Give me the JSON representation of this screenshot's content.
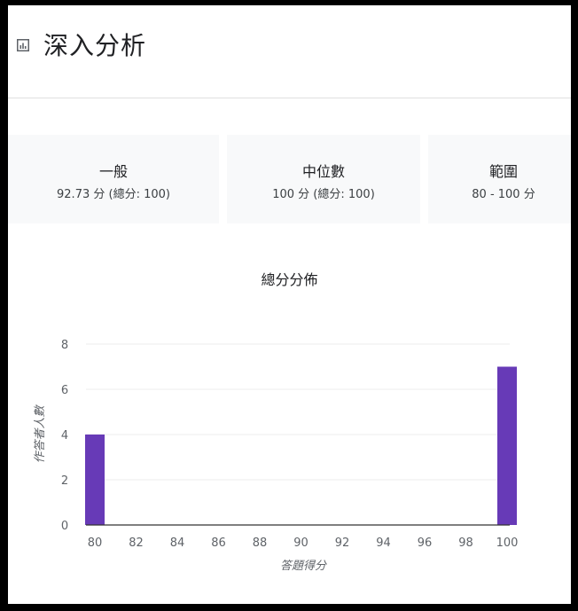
{
  "header": {
    "title": "深入分析",
    "icon": "bar-chart-icon"
  },
  "stats": [
    {
      "label": "一般",
      "value": "92.73 分 (總分: 100)"
    },
    {
      "label": "中位數",
      "value": "100 分 (總分: 100)"
    },
    {
      "label": "範圍",
      "value": "80 - 100 分"
    }
  ],
  "chart_data": {
    "type": "bar",
    "title": "總分分佈",
    "xlabel": "答題得分",
    "ylabel": "作答者人數",
    "x_ticks": [
      "80",
      "82",
      "84",
      "86",
      "88",
      "90",
      "92",
      "94",
      "96",
      "98",
      "100"
    ],
    "y_ticks": [
      "0",
      "2",
      "4",
      "6",
      "8"
    ],
    "ylim": [
      0,
      8
    ],
    "xlim": [
      80,
      100
    ],
    "bars": [
      {
        "x": 80,
        "value": 4
      },
      {
        "x": 100,
        "value": 7
      }
    ],
    "bar_color": "#673ab7",
    "grid": true
  }
}
